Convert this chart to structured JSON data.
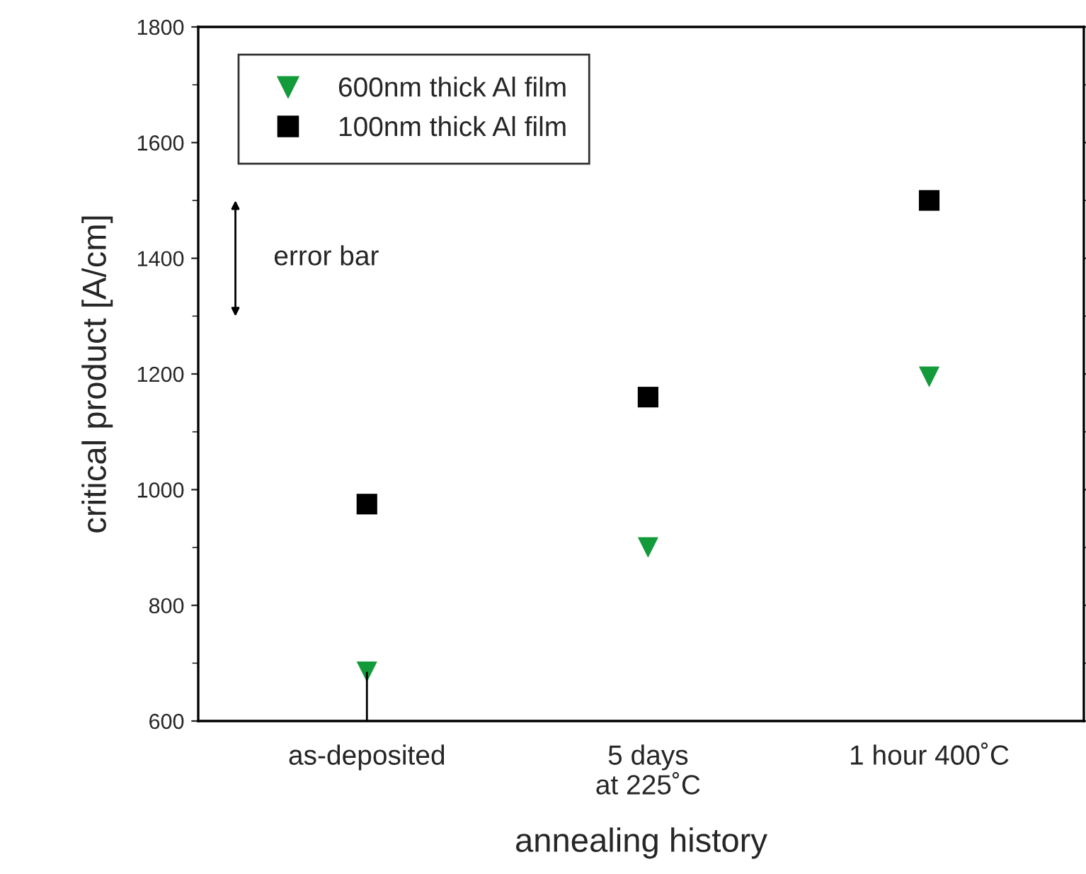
{
  "chart_data": {
    "type": "scatter",
    "xlabel": "annealing history",
    "ylabel": "critical product [A/cm]",
    "categories": [
      "as-deposited",
      "5 days\nat 225˚C",
      "1 hour 400˚C"
    ],
    "series": [
      {
        "name": "600nm thick Al film",
        "color": "#139a3a",
        "marker": "triangle",
        "values": [
          685,
          900,
          1195
        ],
        "errors": [
          [
            600,
            685
          ],
          null,
          null
        ]
      },
      {
        "name": "100nm thick Al film",
        "color": "#000000",
        "marker": "square",
        "values": [
          975,
          1160,
          1500
        ]
      }
    ],
    "ylim": [
      600,
      1800
    ],
    "yticks": [
      600,
      800,
      1000,
      1200,
      1400,
      1600,
      1800
    ],
    "annotations": [
      "error bar"
    ],
    "legend": "top left",
    "grid": false
  }
}
